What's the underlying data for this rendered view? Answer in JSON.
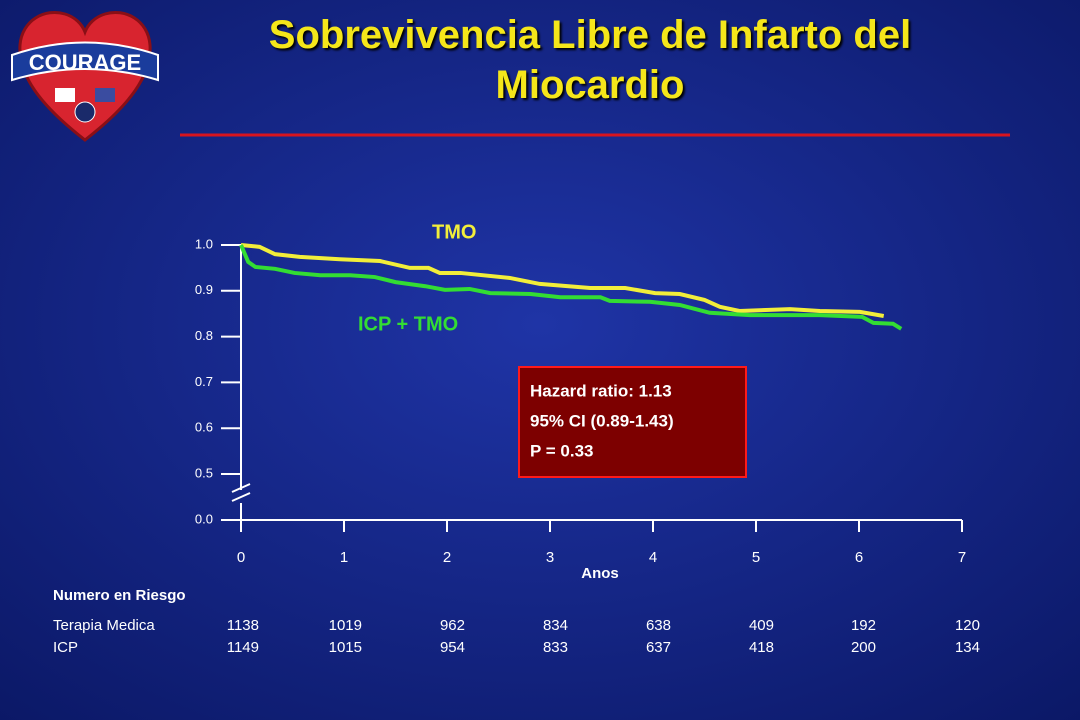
{
  "logo": {
    "text": "COURAGE"
  },
  "chart_data": {
    "type": "line",
    "title": "Sobrevivencia Libre de Infarto del Miocardio",
    "xlabel": "Anos",
    "xlim": [
      0,
      7
    ],
    "xticks": [
      0,
      1,
      2,
      3,
      4,
      5,
      6,
      7
    ],
    "ylim": [
      0,
      1
    ],
    "y_break": [
      0,
      0.5
    ],
    "yticks": [
      {
        "value": 0,
        "label": "0.0"
      },
      0.5,
      0.6,
      0.7,
      0.8,
      0.9,
      {
        "value": 1,
        "label": "1.0"
      }
    ],
    "series": [
      {
        "name": "TMO",
        "color": "#f2ee3a",
        "x": [
          0,
          0.18,
          0.33,
          0.57,
          0.96,
          1.35,
          1.64,
          1.82,
          1.93,
          2.13,
          2.61,
          2.9,
          3.39,
          3.73,
          4.02,
          4.26,
          4.5,
          4.65,
          4.84,
          5.33,
          5.62,
          6.01,
          6.24
        ],
        "values": [
          1.0,
          0.996,
          0.98,
          0.974,
          0.969,
          0.965,
          0.95,
          0.95,
          0.939,
          0.939,
          0.928,
          0.915,
          0.906,
          0.906,
          0.895,
          0.893,
          0.88,
          0.865,
          0.856,
          0.86,
          0.856,
          0.854,
          0.845
        ]
      },
      {
        "name": "ICP + TMO",
        "color": "#33dd33",
        "x": [
          0,
          0.07,
          0.14,
          0.33,
          0.52,
          0.77,
          1.06,
          1.3,
          1.5,
          1.79,
          1.98,
          2.22,
          2.42,
          2.81,
          3.1,
          3.49,
          3.58,
          3.97,
          4.26,
          4.55,
          4.94,
          5.62,
          6.03,
          6.14,
          6.33,
          6.41
        ],
        "values": [
          1.0,
          0.963,
          0.952,
          0.948,
          0.939,
          0.934,
          0.934,
          0.93,
          0.919,
          0.91,
          0.902,
          0.904,
          0.895,
          0.893,
          0.886,
          0.886,
          0.878,
          0.876,
          0.869,
          0.852,
          0.847,
          0.847,
          0.843,
          0.83,
          0.828,
          0.817
        ]
      }
    ],
    "annotation": [
      "Hazard ratio: 1.13",
      "95% CI (0.89-1.43)",
      "P = 0.33"
    ],
    "risk_table": {
      "title": "Numero en Riesgo",
      "rows": [
        {
          "label": "Terapia Medica",
          "values": [
            1138,
            1019,
            962,
            834,
            638,
            409,
            192,
            120
          ]
        },
        {
          "label": "ICP",
          "values": [
            1149,
            1015,
            954,
            833,
            637,
            418,
            200,
            134
          ]
        }
      ]
    }
  }
}
